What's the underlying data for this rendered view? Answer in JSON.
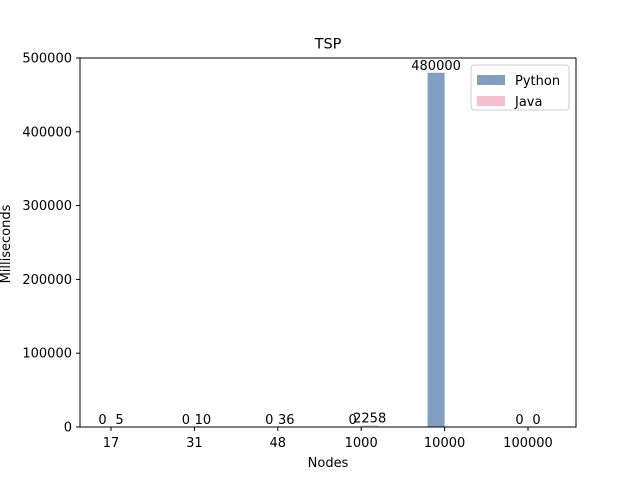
{
  "chart_data": {
    "type": "bar",
    "title": "TSP",
    "xlabel": "Nodes",
    "ylabel": "Milliseconds",
    "categories": [
      "17",
      "31",
      "48",
      "1000",
      "10000",
      "100000"
    ],
    "series": [
      {
        "name": "Python",
        "values": [
          0,
          0,
          0,
          0,
          480000,
          0
        ],
        "labels": [
          "0",
          "0",
          "0",
          "0",
          "480000",
          "0"
        ],
        "color": "#819fc0"
      },
      {
        "name": "Java",
        "values": [
          5,
          10,
          36,
          2258,
          0,
          0
        ],
        "labels": [
          "5",
          "10",
          "36",
          "2258",
          "",
          "0"
        ],
        "color": "#f7bfcb"
      }
    ],
    "ylim": [
      0,
      500000
    ],
    "yticks": [
      0,
      100000,
      200000,
      300000,
      400000,
      500000
    ],
    "grid": false,
    "legend_position": "upper right"
  }
}
